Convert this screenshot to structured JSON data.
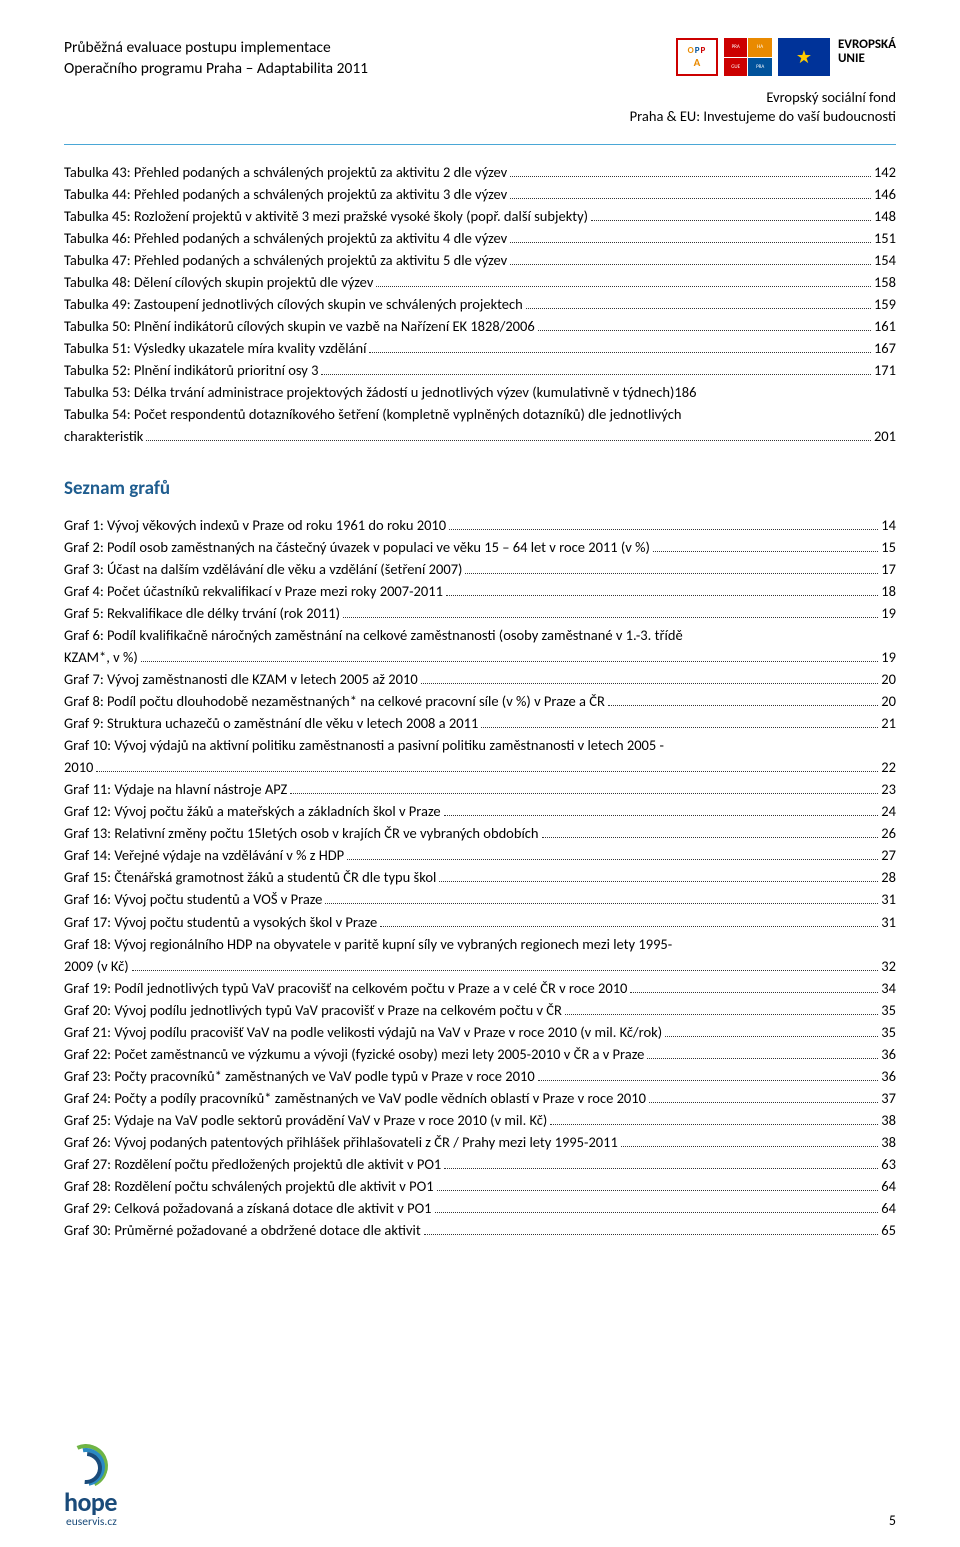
{
  "header": {
    "title_line1": "Průběžná evaluace postupu implementace",
    "title_line2": "Operačního programu Praha – Adaptabilita 2011",
    "eu_l1": "EVROPSKÁ",
    "eu_l2": "UNIE",
    "sub_r1": "Evropský sociální fond",
    "sub_r2": "Praha & EU: Investujeme do vaší budoucnosti",
    "opp_top": "O P P",
    "opp_mid": "A"
  },
  "tables": [
    {
      "label": "Tabulka 43: Přehled podaných a schválených projektů za aktivitu 2 dle výzev",
      "page": "142"
    },
    {
      "label": "Tabulka 44: Přehled podaných a schválených projektů za aktivitu 3 dle výzev",
      "page": "146"
    },
    {
      "label": "Tabulka 45: Rozložení projektů v aktivitě 3 mezi pražské vysoké školy (popř. další subjekty)",
      "page": "148"
    },
    {
      "label": "Tabulka 46: Přehled podaných a schválených projektů za aktivitu 4 dle výzev",
      "page": "151"
    },
    {
      "label": "Tabulka 47: Přehled podaných a schválených projektů za aktivitu 5 dle výzev",
      "page": "154"
    },
    {
      "label": "Tabulka 48: Dělení cílových skupin projektů dle výzev",
      "page": "158"
    },
    {
      "label": "Tabulka 49: Zastoupení jednotlivých cílových skupin ve schválených projektech",
      "page": "159"
    },
    {
      "label": "Tabulka 50: Plnění indikátorů cílových skupin ve vazbě na Nařízení EK 1828/2006",
      "page": "161"
    },
    {
      "label": "Tabulka 51: Výsledky ukazatele míra kvality vzdělání",
      "page": "167"
    },
    {
      "label": "Tabulka 52: Plnění indikátorů prioritní osy 3",
      "page": "171"
    },
    {
      "label": "Tabulka 53: Délka trvání administrace projektových žádostí u jednotlivých výzev (kumulativně v týdnech)",
      "page": "186",
      "nodots": true
    },
    {
      "label_pre": "Tabulka 54: Počet respondentů dotazníkového šetření (kompletně vyplněných dotazníků) dle jednotlivých",
      "label_tail": "charakteristik",
      "page": "201",
      "multiline": true
    }
  ],
  "section_heading": "Seznam grafů",
  "grafs": [
    {
      "label": "Graf 1: Vývoj věkových indexů v Praze od roku 1961 do roku 2010",
      "page": "14"
    },
    {
      "label": "Graf 2: Podíl osob zaměstnaných na částečný úvazek v populaci ve věku 15 – 64 let v roce 2011 (v %)",
      "page": "15"
    },
    {
      "label": "Graf 3: Účast na dalším vzdělávání dle věku a vzdělání (šetření 2007)",
      "page": "17"
    },
    {
      "label": "Graf 4: Počet účastníků rekvalifikací v Praze mezi roky 2007-2011",
      "page": "18"
    },
    {
      "label": "Graf 5: Rekvalifikace dle délky trvání (rok 2011)",
      "page": "19"
    },
    {
      "label_pre": "Graf 6: Podíl kvalifikačně náročných zaměstnání na celkové zaměstnanosti (osoby zaměstnané v 1.-3. třídě",
      "label_tail": "KZAM*, v %)",
      "page": "19",
      "multiline": true
    },
    {
      "label": "Graf 7: Vývoj zaměstnanosti dle KZAM v letech 2005 až 2010",
      "page": "20"
    },
    {
      "label": "Graf 8: Podíl počtu dlouhodobě nezaměstnaných* na celkové pracovní síle (v %) v Praze a ČR",
      "page": "20"
    },
    {
      "label": "Graf 9: Struktura uchazečů o zaměstnání dle věku v letech 2008 a 2011",
      "page": "21"
    },
    {
      "label_pre": "Graf 10: Vývoj výdajů na aktivní politiku zaměstnanosti a pasivní politiku zaměstnanosti v letech 2005 -",
      "label_tail": "2010",
      "page": "22",
      "multiline": true
    },
    {
      "label": "Graf 11: Výdaje na hlavní nástroje APZ",
      "page": "23"
    },
    {
      "label": "Graf 12: Vývoj počtu žáků a mateřských a základních škol v Praze",
      "page": "24"
    },
    {
      "label": "Graf 13: Relativní změny počtu 15letých osob v krajích ČR ve vybraných obdobích",
      "page": "26"
    },
    {
      "label": "Graf 14: Veřejné výdaje na vzdělávání v % z HDP",
      "page": "27"
    },
    {
      "label": "Graf 15: Čtenářská gramotnost žáků a studentů ČR dle typu škol",
      "page": "28"
    },
    {
      "label": "Graf 16: Vývoj počtu studentů a VOŠ v Praze",
      "page": "31"
    },
    {
      "label": "Graf 17: Vývoj počtu studentů a vysokých škol v Praze",
      "page": "31"
    },
    {
      "label_pre": "Graf 18: Vývoj regionálního HDP na obyvatele v paritě kupní síly ve vybraných regionech mezi lety 1995-",
      "label_tail": "2009 (v Kč)",
      "page": "32",
      "multiline": true
    },
    {
      "label": "Graf 19: Podíl jednotlivých typů VaV pracovišť na celkovém počtu v Praze a v celé ČR v roce 2010",
      "page": "34"
    },
    {
      "label": "Graf 20: Vývoj podílu jednotlivých typů VaV pracovišť v Praze na celkovém počtu v ČR",
      "page": "35"
    },
    {
      "label": "Graf 21: Vývoj podílu pracovišť VaV na podle velikosti výdajů na VaV v Praze v roce 2010 (v mil. Kč/rok)",
      "page": "35"
    },
    {
      "label": "Graf 22: Počet zaměstnanců ve výzkumu a vývoji (fyzické osoby) mezi lety 2005-2010 v ČR a v Praze",
      "page": "36"
    },
    {
      "label": "Graf 23: Počty pracovníků* zaměstnaných ve VaV podle typů v Praze v roce 2010",
      "page": "36"
    },
    {
      "label": "Graf 24: Počty a podíly pracovníků* zaměstnaných ve VaV podle vědních oblastí v Praze v roce 2010",
      "page": "37"
    },
    {
      "label": "Graf 25: Výdaje na VaV podle sektorů provádění VaV v Praze v roce 2010 (v mil. Kč)",
      "page": "38"
    },
    {
      "label": "Graf 26: Vývoj podaných patentových přihlášek přihlašovateli z ČR / Prahy mezi lety 1995-2011",
      "page": "38"
    },
    {
      "label": "Graf 27: Rozdělení počtu předložených projektů dle aktivit v PO1",
      "page": "63"
    },
    {
      "label": "Graf 28: Rozdělení počtu schválených projektů dle aktivit v PO1",
      "page": "64"
    },
    {
      "label": "Graf 29: Celková požadovaná a získaná dotace dle aktivit v PO1",
      "page": "64"
    },
    {
      "label": "Graf 30: Průměrné požadované a obdržené dotace dle aktivit",
      "page": "65"
    }
  ],
  "footer": {
    "brand": "hope",
    "sub": "euservis.cz",
    "page": "5"
  }
}
